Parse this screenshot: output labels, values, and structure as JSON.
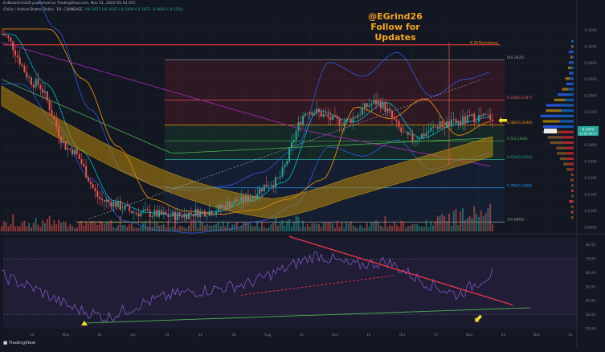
{
  "header": {
    "published": "EnBetaGrind26 published on TradingView.com, Nov 21, 2022 01:54 UTC",
    "symbol": "Chiliz / United States Dollar, 1D, COINBASE",
    "ohlc": "O0.1971 H0.2022 L0.1909 C0.1972 -0.0003 (-0.15%)"
  },
  "watermark": {
    "line1": "@EGrind26",
    "line2": "Follow for Updates"
  },
  "footer": {
    "brand": "TradingView"
  },
  "annotations": {
    "resistance": "0.30 Resistance",
    "fib_0": "0(0.2835)",
    "fib_236": "0.236(0.2347)",
    "fib_382": "0.382(0.2046)",
    "fib_5": "0.5(0.1848)",
    "fib_618": "0.618(0.1626)",
    "fib_786": "0.786(0.1280)",
    "fib_1": "1(0.0865)",
    "price_badge": "0.1972",
    "price_badge_sub": "2d 05:46:17"
  },
  "colors": {
    "background": "#131722",
    "bull": "#26a69a",
    "bear": "#ef5350",
    "resistance": "#ff3b3b",
    "watermark": "#f7a51c",
    "rsi": "#7e57c2",
    "trend_down": "#f23645",
    "trend_up": "#4caf50",
    "arrow": "#f5e12a"
  },
  "chart_data": [
    {
      "type": "line",
      "title": "Chiliz / United States Dollar, 1D",
      "x": [
        "Apr 18",
        "May 1",
        "May 16",
        "Jun 1",
        "Jun 13",
        "Jul 1",
        "Jul 18",
        "Aug 1",
        "Aug 15",
        "Sep 1",
        "Sep 12",
        "Oct 1",
        "Oct 17",
        "Nov 1",
        "Nov 14",
        "Dec 1",
        "Dec 12"
      ],
      "series": [
        {
          "values": [
            0.315,
            0.255,
            0.175,
            0.112,
            0.098,
            0.094,
            0.099,
            0.112,
            0.135,
            0.222,
            0.208,
            0.232,
            0.188,
            0.205,
            0.214,
            null,
            null
          ]
        }
      ],
      "y_ticks": [
        0.32,
        0.3,
        0.28,
        0.26,
        0.24,
        0.22,
        0.2,
        0.18,
        0.16,
        0.14,
        0.12,
        0.1,
        0.08
      ],
      "ylim": [
        0.075,
        0.335
      ],
      "x_ticks": [
        "18",
        "May",
        "16",
        "Jun",
        "13",
        "Jul",
        "18",
        "Aug",
        "15",
        "Sep",
        "12",
        "Oct",
        "17",
        "Nov",
        "14",
        "Dec",
        "12"
      ],
      "levels": [
        {
          "label": "0.30 Resistance",
          "value": 0.302
        },
        {
          "label": "0(0.2835)",
          "value": 0.2835
        },
        {
          "label": "0.236(0.2347)",
          "value": 0.2347
        },
        {
          "label": "0.382(0.2046)",
          "value": 0.2046
        },
        {
          "label": "0.5(0.1848)",
          "value": 0.1848
        },
        {
          "label": "0.618(0.1626)",
          "value": 0.1626
        },
        {
          "label": "0.786(0.1280)",
          "value": 0.128
        },
        {
          "label": "1(0.0865)",
          "value": 0.0865
        }
      ],
      "last_price": 0.1972
    },
    {
      "type": "line",
      "title": "",
      "ylim": [
        20,
        85
      ],
      "y_ticks": [
        80,
        70,
        60,
        50,
        40,
        30,
        20
      ],
      "series": [
        {
          "values": [
            58,
            48,
            35,
            28,
            38,
            45,
            48,
            52,
            62,
            73,
            65,
            68,
            54,
            44,
            60
          ]
        }
      ],
      "trendlines": [
        {
          "kind": "resistance",
          "from": [
            8,
            88
          ],
          "to": [
            15,
            35
          ]
        },
        {
          "kind": "support",
          "from": [
            2.5,
            22
          ],
          "to": [
            15,
            33
          ]
        }
      ]
    }
  ]
}
